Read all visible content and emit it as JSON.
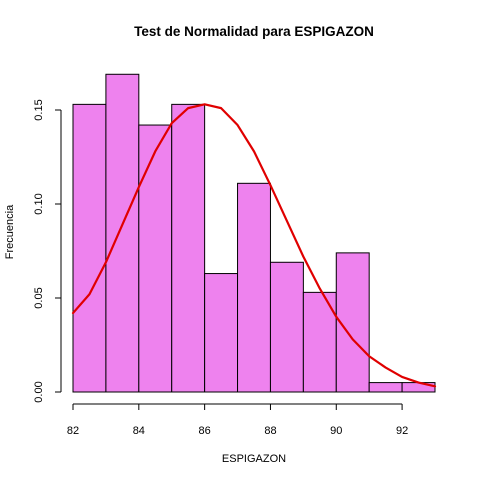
{
  "chart_data": {
    "type": "bar",
    "title": "Test de Normalidad para  ESPIGAZON",
    "xlabel": "ESPIGAZON",
    "ylabel": "Frecuencia",
    "xlim": [
      82,
      93
    ],
    "ylim": [
      0,
      0.175
    ],
    "x_ticks": [
      82,
      84,
      86,
      88,
      90,
      92
    ],
    "y_ticks": [
      0.0,
      0.05,
      0.1,
      0.15
    ],
    "x_tick_labels": [
      "82",
      "84",
      "86",
      "88",
      "90",
      "92"
    ],
    "y_tick_labels": [
      "0.00",
      "0.05",
      "0.10",
      "0.15"
    ],
    "grid": false,
    "bins": [
      {
        "start": 82,
        "end": 83,
        "value": 0.153
      },
      {
        "start": 83,
        "end": 84,
        "value": 0.169
      },
      {
        "start": 84,
        "end": 85,
        "value": 0.142
      },
      {
        "start": 85,
        "end": 86,
        "value": 0.153
      },
      {
        "start": 86,
        "end": 87,
        "value": 0.063
      },
      {
        "start": 87,
        "end": 88,
        "value": 0.111
      },
      {
        "start": 88,
        "end": 89,
        "value": 0.069
      },
      {
        "start": 89,
        "end": 90,
        "value": 0.053
      },
      {
        "start": 90,
        "end": 91,
        "value": 0.074
      },
      {
        "start": 91,
        "end": 92,
        "value": 0.005
      },
      {
        "start": 92,
        "end": 93,
        "value": 0.005
      }
    ],
    "density_curve": {
      "x": [
        82,
        82.5,
        83,
        83.5,
        84,
        84.5,
        85,
        85.5,
        86,
        86.5,
        87,
        87.5,
        88,
        88.5,
        89,
        89.5,
        90,
        90.5,
        91,
        91.5,
        92,
        92.5,
        93
      ],
      "y": [
        0.042,
        0.052,
        0.069,
        0.089,
        0.109,
        0.128,
        0.143,
        0.151,
        0.153,
        0.151,
        0.142,
        0.128,
        0.11,
        0.091,
        0.072,
        0.055,
        0.04,
        0.028,
        0.019,
        0.013,
        0.008,
        0.005,
        0.003
      ]
    },
    "colors": {
      "bar_fill": "#ee82ee",
      "bar_stroke": "#000000",
      "curve": "#e00000"
    }
  }
}
